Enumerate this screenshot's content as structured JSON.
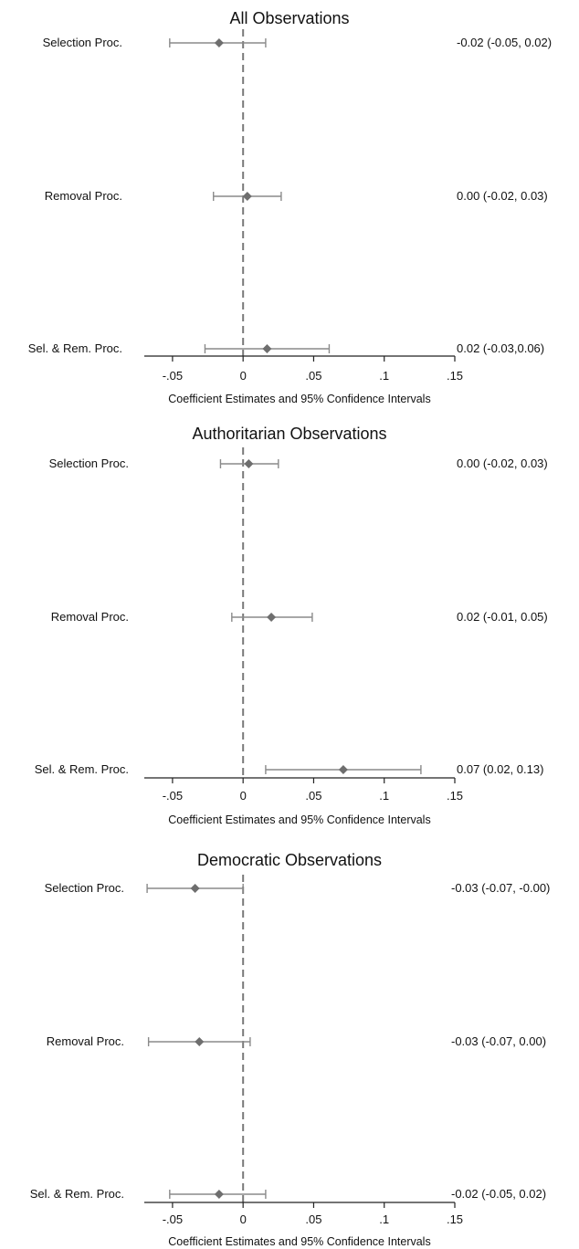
{
  "chart_data": [
    {
      "type": "coefficient-plot",
      "title": "All Observations",
      "xlabel": "Coefficient Estimates and 95% Confidence Intervals",
      "ticks": [
        -0.05,
        0,
        0.05,
        0.1,
        0.15
      ],
      "tick_labels": [
        "-.05",
        "0",
        ".05",
        ".1",
        ".15"
      ],
      "reference_line": 0,
      "grid": false,
      "rows": [
        {
          "label": "Selection Proc.",
          "estimate": -0.017,
          "ci": [
            -0.052,
            0.016
          ],
          "text": "-0.02 (-0.05, 0.02)"
        },
        {
          "label": "Removal Proc.",
          "estimate": 0.003,
          "ci": [
            -0.021,
            0.027
          ],
          "text": "0.00 (-0.02, 0.03)"
        },
        {
          "label": "Sel. & Rem. Proc.",
          "estimate": 0.017,
          "ci": [
            -0.027,
            0.061
          ],
          "text": "0.02 (-0.03,0.06)"
        }
      ]
    },
    {
      "type": "coefficient-plot",
      "title": "Authoritarian Observations",
      "xlabel": "Coefficient Estimates and 95% Confidence Intervals",
      "ticks": [
        -0.05,
        0,
        0.05,
        0.1,
        0.15
      ],
      "tick_labels": [
        "-.05",
        "0",
        ".05",
        ".1",
        ".15"
      ],
      "reference_line": 0,
      "grid": false,
      "rows": [
        {
          "label": "Selection Proc.",
          "estimate": 0.004,
          "ci": [
            -0.016,
            0.025
          ],
          "text": "0.00 (-0.02, 0.03)"
        },
        {
          "label": "Removal Proc.",
          "estimate": 0.02,
          "ci": [
            -0.008,
            0.049
          ],
          "text": "0.02 (-0.01, 0.05)"
        },
        {
          "label": "Sel. & Rem. Proc.",
          "estimate": 0.071,
          "ci": [
            0.016,
            0.126
          ],
          "text": "0.07 (0.02, 0.13)"
        }
      ]
    },
    {
      "type": "coefficient-plot",
      "title": "Democratic Observations",
      "xlabel": "Coefficient Estimates and 95% Confidence Intervals",
      "ticks": [
        -0.05,
        0,
        0.05,
        0.1,
        0.15
      ],
      "tick_labels": [
        "-.05",
        "0",
        ".05",
        ".1",
        ".15"
      ],
      "reference_line": 0,
      "grid": false,
      "rows": [
        {
          "label": "Selection Proc.",
          "estimate": -0.034,
          "ci": [
            -0.068,
            0.0
          ],
          "text": "-0.03 (-0.07, -0.00)"
        },
        {
          "label": "Removal Proc.",
          "estimate": -0.031,
          "ci": [
            -0.067,
            0.005
          ],
          "text": "-0.03 (-0.07, 0.00)"
        },
        {
          "label": "Sel. & Rem. Proc.",
          "estimate": -0.017,
          "ci": [
            -0.052,
            0.016
          ],
          "text": "-0.02 (-0.05, 0.02)"
        }
      ]
    }
  ],
  "colors": {
    "marker": "#6e6e6e",
    "ci_line": "#8a8a8a",
    "reference_line": "#7a7a7a",
    "axis": "#222222",
    "text": "#111111"
  }
}
